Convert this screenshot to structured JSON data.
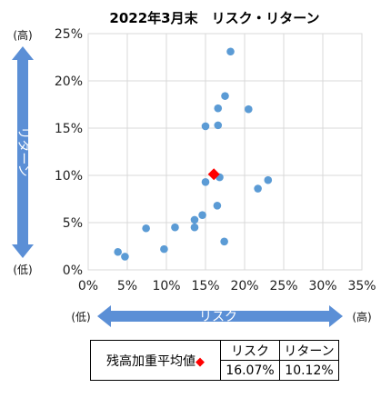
{
  "chart_data": {
    "type": "scatter",
    "title": "2022年3月末　リスク・リターン",
    "xlabel": "リスク",
    "ylabel": "リターン",
    "xlim": [
      0,
      35
    ],
    "ylim": [
      0,
      25
    ],
    "x_ticks": [
      "0%",
      "5%",
      "10%",
      "15%",
      "20%",
      "25%",
      "30%",
      "35%"
    ],
    "y_ticks": [
      "0%",
      "5%",
      "10%",
      "15%",
      "20%",
      "25%"
    ],
    "x_low_label": "(低)",
    "x_high_label": "(高)",
    "y_low_label": "(低)",
    "y_high_label": "(高)",
    "grid": true,
    "colors": {
      "points": "#5b9bd5",
      "highlight": "#ff0000",
      "arrows": "#5b8fd6",
      "grid": "#d9d9d9"
    },
    "points": [
      {
        "x": 3.8,
        "y": 1.9
      },
      {
        "x": 4.7,
        "y": 1.4
      },
      {
        "x": 7.4,
        "y": 4.4
      },
      {
        "x": 9.7,
        "y": 2.2
      },
      {
        "x": 11.1,
        "y": 4.5
      },
      {
        "x": 13.6,
        "y": 4.5
      },
      {
        "x": 13.6,
        "y": 5.3
      },
      {
        "x": 14.6,
        "y": 5.8
      },
      {
        "x": 15.0,
        "y": 9.3
      },
      {
        "x": 15.0,
        "y": 15.2
      },
      {
        "x": 16.5,
        "y": 6.8
      },
      {
        "x": 16.6,
        "y": 15.3
      },
      {
        "x": 16.6,
        "y": 17.1
      },
      {
        "x": 16.8,
        "y": 9.8
      },
      {
        "x": 17.4,
        "y": 3.0
      },
      {
        "x": 17.5,
        "y": 18.4
      },
      {
        "x": 18.2,
        "y": 23.1
      },
      {
        "x": 20.5,
        "y": 17.0
      },
      {
        "x": 21.7,
        "y": 8.6
      },
      {
        "x": 23.0,
        "y": 9.5
      }
    ],
    "highlight": {
      "x": 16.07,
      "y": 10.12
    }
  },
  "summary": {
    "label": "残高加重平均値",
    "headers": [
      "リスク",
      "リターン"
    ],
    "values": [
      "16.07%",
      "10.12%"
    ]
  }
}
